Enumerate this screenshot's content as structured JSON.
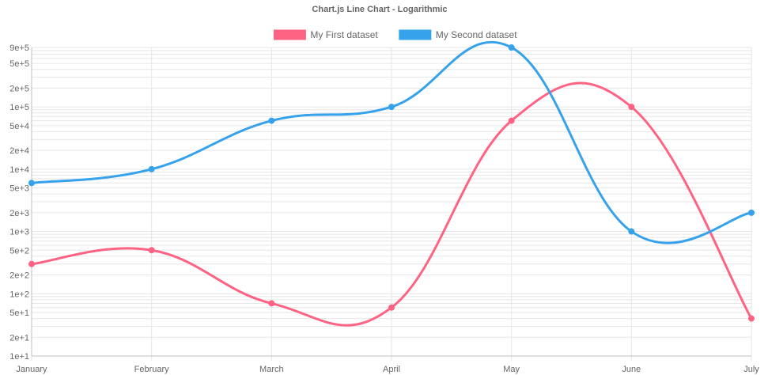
{
  "chart_data": {
    "type": "line",
    "title": "Chart.js Line Chart - Logarithmic",
    "y_scale": "logarithmic",
    "ylim": [
      10,
      900000
    ],
    "grid": true,
    "legend_position": "top-center",
    "categories": [
      "January",
      "February",
      "March",
      "April",
      "May",
      "June",
      "July"
    ],
    "y_ticks": [
      {
        "value": 10,
        "label": "1e+1"
      },
      {
        "value": 20,
        "label": "2e+1"
      },
      {
        "value": 50,
        "label": "5e+1"
      },
      {
        "value": 100,
        "label": "1e+2"
      },
      {
        "value": 200,
        "label": "2e+2"
      },
      {
        "value": 500,
        "label": "5e+2"
      },
      {
        "value": 1000,
        "label": "1e+3"
      },
      {
        "value": 2000,
        "label": "2e+3"
      },
      {
        "value": 5000,
        "label": "5e+3"
      },
      {
        "value": 10000,
        "label": "1e+4"
      },
      {
        "value": 20000,
        "label": "2e+4"
      },
      {
        "value": 50000,
        "label": "5e+4"
      },
      {
        "value": 100000,
        "label": "1e+5"
      },
      {
        "value": 200000,
        "label": "2e+5"
      },
      {
        "value": 500000,
        "label": "5e+5"
      },
      {
        "value": 900000,
        "label": "9e+5"
      }
    ],
    "series": [
      {
        "name": "My First dataset",
        "color": "#ff6384",
        "values": [
          300,
          500,
          70,
          60,
          60000,
          100000,
          40
        ]
      },
      {
        "name": "My Second dataset",
        "color": "#36a2eb",
        "values": [
          6000,
          10000,
          60000,
          100000,
          900000,
          1000,
          2000
        ]
      }
    ]
  }
}
